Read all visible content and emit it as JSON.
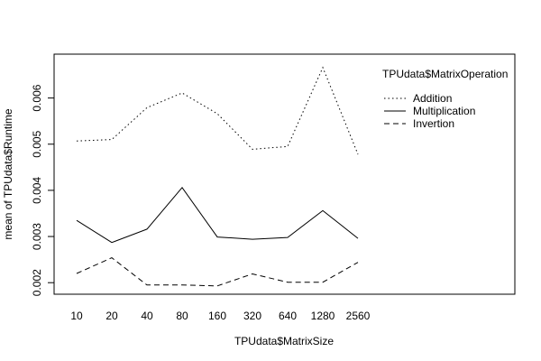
{
  "chart_data": {
    "type": "line",
    "title": "",
    "xlabel": "TPUdata$MatrixSize",
    "ylabel": "mean of TPUdata$Runtime",
    "categories": [
      "10",
      "20",
      "40",
      "80",
      "160",
      "320",
      "640",
      "1280",
      "2560"
    ],
    "ylim": [
      0.00175,
      0.00695
    ],
    "yticks": [
      0.002,
      0.003,
      0.004,
      0.005,
      0.006
    ],
    "ytick_labels": [
      "0.002",
      "0.003",
      "0.004",
      "0.005",
      "0.006"
    ],
    "grid": false,
    "legend": {
      "title": "TPUdata$MatrixOperation",
      "position": "top-right"
    },
    "series": [
      {
        "name": "Addition",
        "dash": "dotted",
        "values": [
          0.00507,
          0.0051,
          0.00579,
          0.00611,
          0.00566,
          0.00489,
          0.00495,
          0.00666,
          0.00478
        ]
      },
      {
        "name": "Multiplication",
        "dash": "solid",
        "values": [
          0.00335,
          0.00287,
          0.00316,
          0.00406,
          0.00299,
          0.00294,
          0.00298,
          0.00356,
          0.00296
        ]
      },
      {
        "name": "Invertion",
        "dash": "dashed",
        "values": [
          0.0022,
          0.00254,
          0.00195,
          0.00195,
          0.00193,
          0.00219,
          0.00201,
          0.00201,
          0.00244
        ]
      }
    ]
  }
}
